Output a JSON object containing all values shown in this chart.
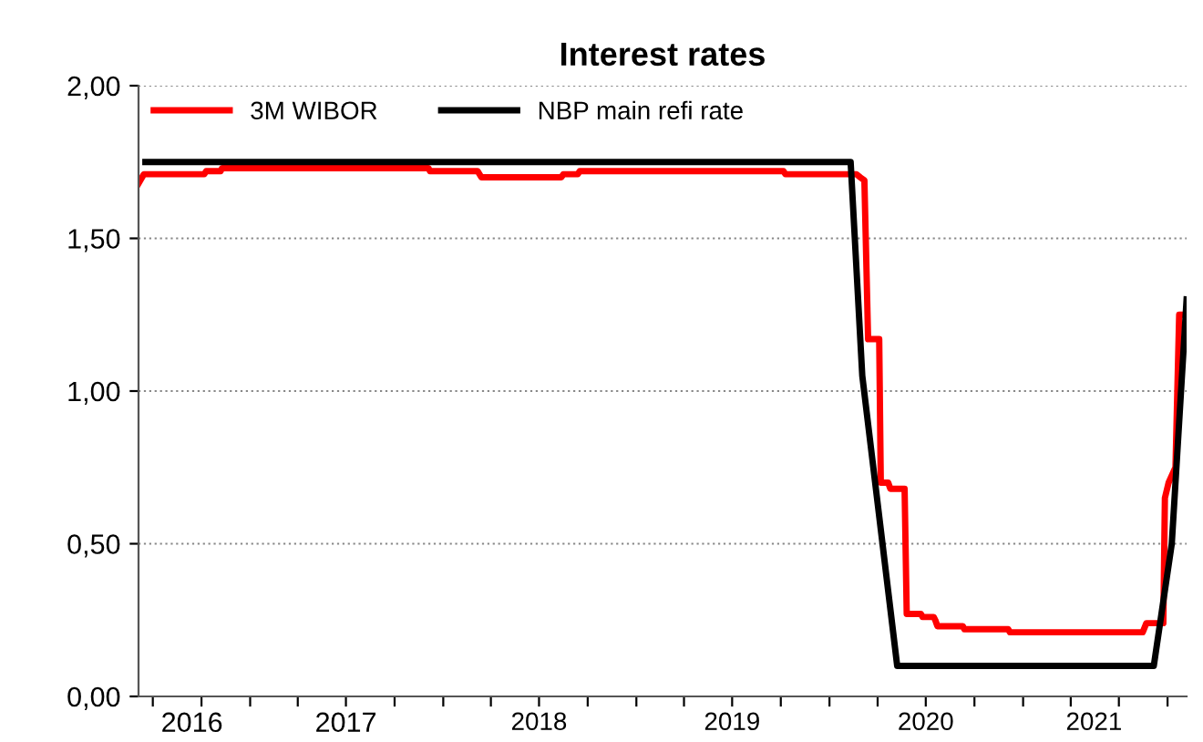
{
  "chart_data": {
    "type": "line",
    "title": "Interest rates",
    "xlim": [
      "2016-06-04",
      "2021-11-06"
    ],
    "xticks": [
      {
        "value": "2016-07-01",
        "label": null
      },
      {
        "value": "2016-10-01",
        "label": null
      },
      {
        "value": "2017-01-01",
        "label": null
      },
      {
        "value": "2017-04-01",
        "label": null
      },
      {
        "value": "2017-07-01",
        "label": null
      },
      {
        "value": "2017-10-01",
        "label": null
      },
      {
        "value": "2018-01-01",
        "label": null
      },
      {
        "value": "2018-04-01",
        "label": null
      },
      {
        "value": "2018-07-01",
        "label": null
      },
      {
        "value": "2018-10-01",
        "label": null
      },
      {
        "value": "2019-01-01",
        "label": null
      },
      {
        "value": "2019-04-01",
        "label": null
      },
      {
        "value": "2019-07-01",
        "label": null
      },
      {
        "value": "2019-10-01",
        "label": null
      },
      {
        "value": "2020-01-01",
        "label": null
      },
      {
        "value": "2020-04-01",
        "label": null
      },
      {
        "value": "2020-07-01",
        "label": null
      },
      {
        "value": "2020-10-01",
        "label": null
      },
      {
        "value": "2021-01-01",
        "label": null
      },
      {
        "value": "2021-04-01",
        "label": null
      },
      {
        "value": "2021-07-01",
        "label": null
      },
      {
        "value": "2021-10-01",
        "label": null
      },
      {
        "value": "2016-09-13",
        "label": "2016"
      },
      {
        "value": "2017-07-01",
        "label": "2017"
      },
      {
        "value": "2018-07-01",
        "label": "2018"
      },
      {
        "value": "2019-07-01",
        "label": "2019"
      },
      {
        "value": "2020-07-01",
        "label": "2020"
      },
      {
        "value": "2021-05-15",
        "label": "2021"
      }
    ],
    "ylim": [
      0,
      2
    ],
    "yticks": [
      {
        "value": 0,
        "label": "0,00"
      },
      {
        "value": 0.5,
        "label": "0,50"
      },
      {
        "value": 1,
        "label": "1,00"
      },
      {
        "value": 1.5,
        "label": "1,50"
      },
      {
        "value": 2,
        "label": "2,00"
      }
    ],
    "grid": "y",
    "legend": "top left",
    "marker": "none",
    "line_style": "solid",
    "series": [
      {
        "name": "3M WIBOR",
        "color": "#ff0000",
        "x": [
          "2016-06-04",
          "2016-06-14",
          "2016-10-06",
          "2016-10-10",
          "2016-11-06",
          "2016-11-09",
          "2017-12-04",
          "2017-12-07",
          "2018-03-07",
          "2018-03-14",
          "2018-08-12",
          "2018-08-16",
          "2018-09-12",
          "2018-09-16",
          "2019-10-06",
          "2019-10-10",
          "2020-02-21",
          "2020-02-28",
          "2020-03-07",
          "2020-03-14",
          "2020-04-04",
          "2020-04-07",
          "2020-04-21",
          "2020-04-25",
          "2020-05-22",
          "2020-05-26",
          "2020-06-22",
          "2020-06-25",
          "2020-07-16",
          "2020-07-19",
          "2020-07-23",
          "2020-09-09",
          "2020-09-12",
          "2020-12-04",
          "2020-12-07",
          "2021-08-15",
          "2021-08-22",
          "2021-09-23",
          "2021-09-26",
          "2021-10-03",
          "2021-10-16",
          "2021-10-23",
          "2021-10-30"
        ],
        "values": [
          1.68,
          1.71,
          1.71,
          1.72,
          1.72,
          1.73,
          1.73,
          1.72,
          1.72,
          1.7,
          1.7,
          1.71,
          1.71,
          1.72,
          1.72,
          1.71,
          1.71,
          1.7,
          1.69,
          1.17,
          1.17,
          0.7,
          0.7,
          0.68,
          0.68,
          0.27,
          0.27,
          0.26,
          0.26,
          0.25,
          0.23,
          0.23,
          0.22,
          0.22,
          0.21,
          0.21,
          0.24,
          0.24,
          0.65,
          0.7,
          0.75,
          1.25,
          1.25
        ]
      },
      {
        "name": "NBP main refi rate",
        "color": "#000000",
        "x": [
          "2016-06-17",
          "2020-02-10",
          "2020-03-03",
          "2020-05-08",
          "2021-09-05",
          "2021-10-09",
          "2021-11-06"
        ],
        "values": [
          1.75,
          1.75,
          1.05,
          0.1,
          0.1,
          0.5,
          1.3
        ]
      }
    ]
  }
}
